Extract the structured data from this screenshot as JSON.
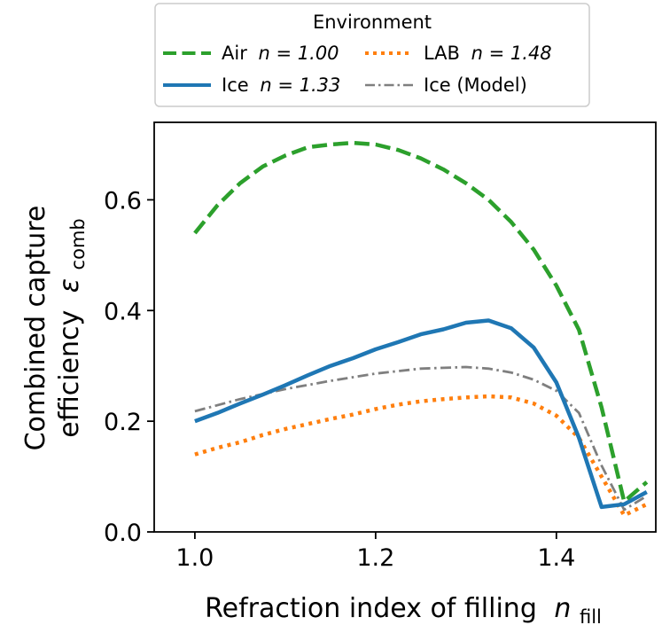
{
  "chart_data": {
    "type": "line",
    "xlabel": "Refraction index of filling",
    "xlabel_symbol": "n",
    "xlabel_sub": "fill",
    "ylabel_line1": "Combined capture",
    "ylabel_line2": "efficiency",
    "ylabel_symbol": "ε",
    "ylabel_sub": "comb",
    "xlim": [
      0.955,
      1.51
    ],
    "ylim": [
      0.0,
      0.74
    ],
    "xticks": [
      1.0,
      1.2,
      1.4
    ],
    "xtick_labels": [
      "1.0",
      "1.2",
      "1.4"
    ],
    "yticks": [
      0.0,
      0.2,
      0.4,
      0.6
    ],
    "ytick_labels": [
      "0.0",
      "0.2",
      "0.4",
      "0.6"
    ],
    "grid": false,
    "legend": {
      "title": "Environment",
      "placement": "top",
      "columns": 2
    },
    "series": [
      {
        "name": "Air",
        "n_label": "n = 1.00",
        "color": "#2ca02c",
        "style": "dashed",
        "x": [
          1.0,
          1.025,
          1.05,
          1.075,
          1.1,
          1.125,
          1.15,
          1.175,
          1.2,
          1.225,
          1.25,
          1.275,
          1.3,
          1.325,
          1.35,
          1.375,
          1.4,
          1.425,
          1.45,
          1.475,
          1.5
        ],
        "y": [
          0.54,
          0.59,
          0.63,
          0.66,
          0.68,
          0.695,
          0.7,
          0.703,
          0.7,
          0.69,
          0.675,
          0.655,
          0.63,
          0.6,
          0.56,
          0.51,
          0.445,
          0.365,
          0.225,
          0.055,
          0.09
        ]
      },
      {
        "name": "LAB",
        "n_label": "n = 1.48",
        "color": "#ff7f0e",
        "style": "dotted",
        "x": [
          1.0,
          1.025,
          1.05,
          1.075,
          1.1,
          1.125,
          1.15,
          1.175,
          1.2,
          1.225,
          1.25,
          1.275,
          1.3,
          1.325,
          1.35,
          1.375,
          1.4,
          1.425,
          1.45,
          1.475,
          1.5
        ],
        "y": [
          0.14,
          0.152,
          0.162,
          0.175,
          0.186,
          0.195,
          0.204,
          0.212,
          0.222,
          0.23,
          0.236,
          0.24,
          0.243,
          0.245,
          0.243,
          0.232,
          0.21,
          0.17,
          0.1,
          0.03,
          0.05
        ]
      },
      {
        "name": "Ice",
        "n_label": "n = 1.33",
        "color": "#1f77b4",
        "style": "solid",
        "x": [
          1.0,
          1.025,
          1.05,
          1.075,
          1.1,
          1.125,
          1.15,
          1.175,
          1.2,
          1.225,
          1.25,
          1.275,
          1.3,
          1.325,
          1.35,
          1.375,
          1.4,
          1.425,
          1.45,
          1.475,
          1.5
        ],
        "y": [
          0.2,
          0.215,
          0.232,
          0.248,
          0.265,
          0.283,
          0.3,
          0.314,
          0.33,
          0.343,
          0.357,
          0.366,
          0.378,
          0.382,
          0.368,
          0.333,
          0.27,
          0.17,
          0.045,
          0.05,
          0.072
        ]
      },
      {
        "name": "Ice (Model)",
        "color": "#7f7f7f",
        "style": "dashdot",
        "x": [
          1.0,
          1.05,
          1.1,
          1.15,
          1.2,
          1.25,
          1.3,
          1.325,
          1.35,
          1.375,
          1.4,
          1.425,
          1.45,
          1.475,
          1.5
        ],
        "y": [
          0.218,
          0.24,
          0.258,
          0.273,
          0.286,
          0.295,
          0.298,
          0.295,
          0.288,
          0.275,
          0.255,
          0.215,
          0.12,
          0.04,
          0.065
        ]
      }
    ]
  }
}
